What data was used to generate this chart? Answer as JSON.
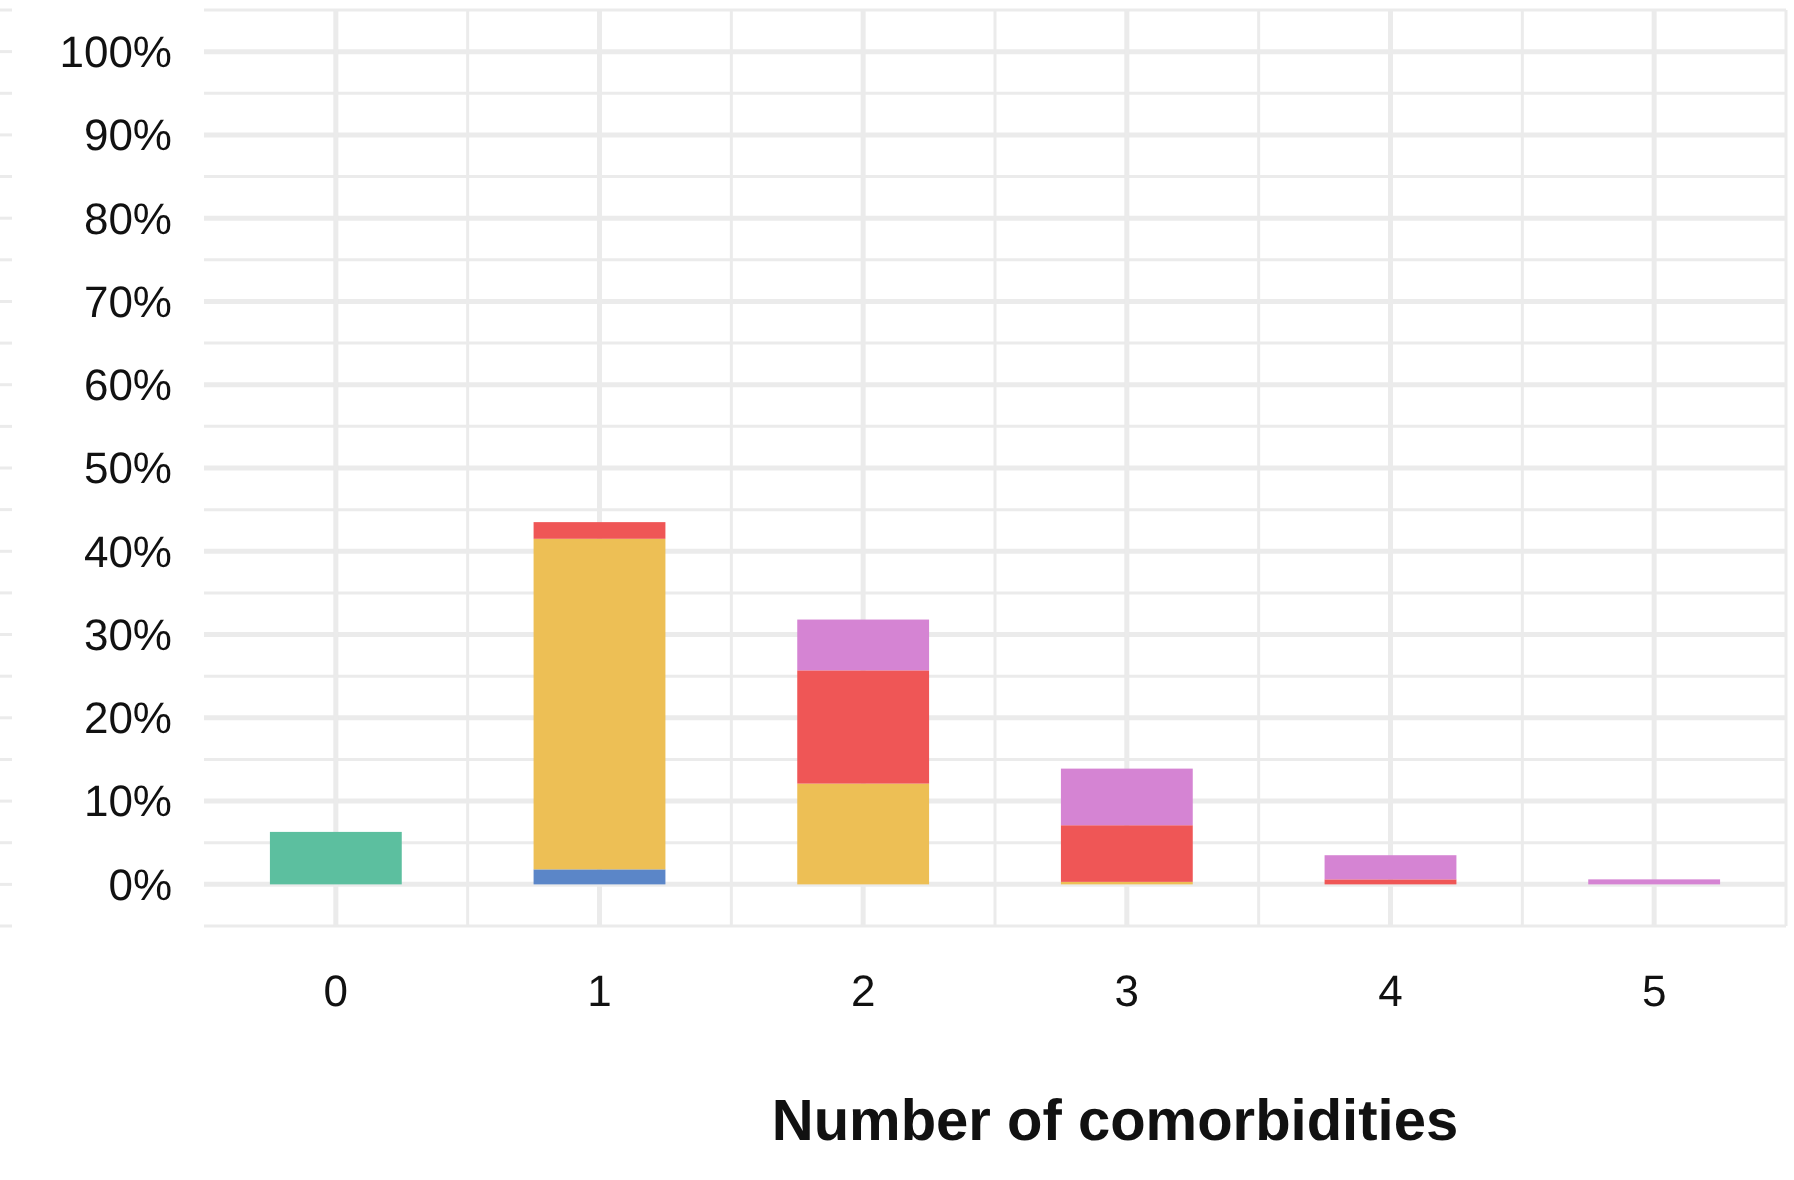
{
  "chart_data": {
    "type": "bar",
    "stacked": true,
    "xlabel": "Number of comorbidities",
    "categories": [
      "0",
      "1",
      "2",
      "3",
      "4",
      "5"
    ],
    "series": [
      {
        "color": "#5cbf9f",
        "values": [
          6.3,
          0,
          0,
          0,
          0,
          0
        ]
      },
      {
        "color": "#5b86c8",
        "values": [
          0,
          1.8,
          0,
          0,
          0,
          0
        ]
      },
      {
        "color": "#edbf55",
        "values": [
          0,
          39.7,
          12.1,
          0.3,
          0,
          0
        ]
      },
      {
        "color": "#ef5656",
        "values": [
          0,
          2.0,
          13.6,
          6.8,
          0.6,
          0
        ]
      },
      {
        "color": "#d584d3",
        "values": [
          0,
          0,
          6.1,
          6.8,
          2.9,
          0.6
        ]
      }
    ],
    "ylim": [
      -5,
      105
    ],
    "yticks": [
      {
        "value": -5,
        "label": null
      },
      {
        "value": 0,
        "label": "0%"
      },
      {
        "value": 5,
        "label": null
      },
      {
        "value": 10,
        "label": "10%"
      },
      {
        "value": 15,
        "label": null
      },
      {
        "value": 20,
        "label": "20%"
      },
      {
        "value": 25,
        "label": null
      },
      {
        "value": 30,
        "label": "30%"
      },
      {
        "value": 35,
        "label": null
      },
      {
        "value": 40,
        "label": "40%"
      },
      {
        "value": 45,
        "label": null
      },
      {
        "value": 50,
        "label": "50%"
      },
      {
        "value": 55,
        "label": null
      },
      {
        "value": 60,
        "label": "60%"
      },
      {
        "value": 65,
        "label": null
      },
      {
        "value": 70,
        "label": "70%"
      },
      {
        "value": 75,
        "label": null
      },
      {
        "value": 80,
        "label": "80%"
      },
      {
        "value": 85,
        "label": null
      },
      {
        "value": 90,
        "label": "90%"
      },
      {
        "value": 95,
        "label": null
      },
      {
        "value": 100,
        "label": "100%"
      },
      {
        "value": 105,
        "label": null
      }
    ],
    "grid": true
  }
}
